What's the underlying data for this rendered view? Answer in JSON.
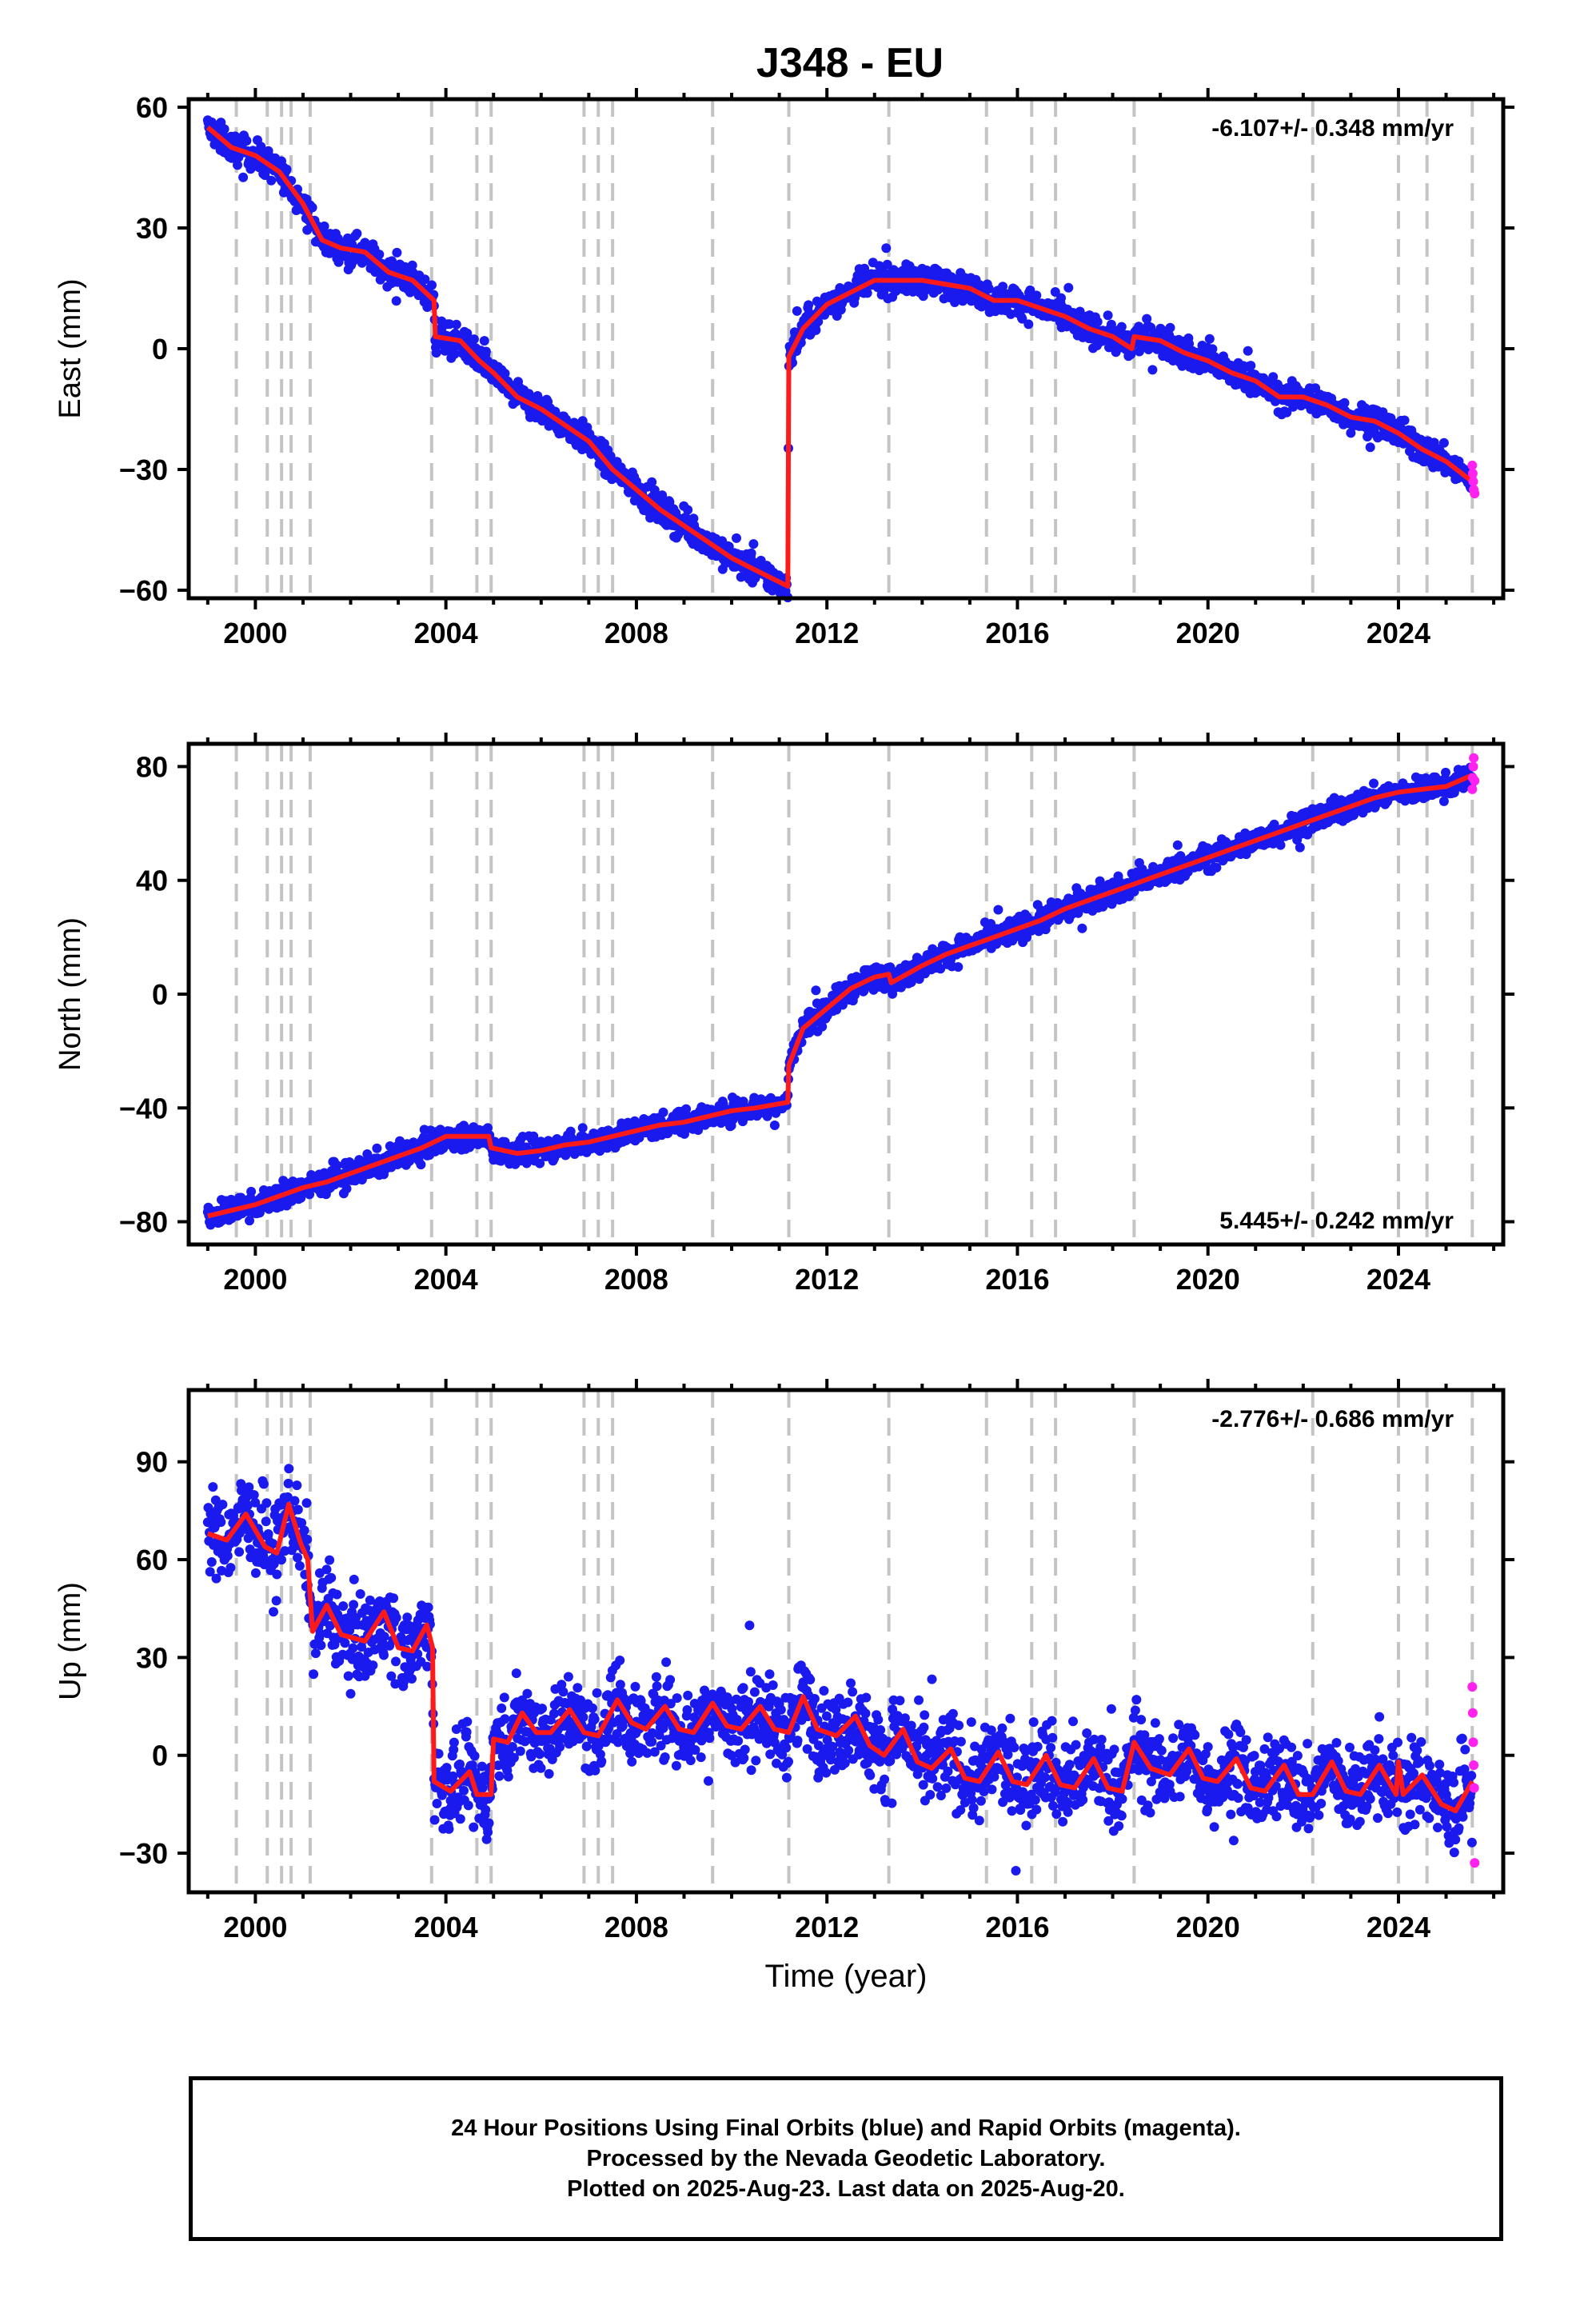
{
  "chart_data": {
    "type": "scatter",
    "title": "J348 - EU",
    "xlabel": "Time (year)",
    "xlim": [
      1998.6,
      2026.2
    ],
    "xticks": [
      2000,
      2004,
      2008,
      2012,
      2016,
      2020,
      2024
    ],
    "event_lines": [
      1999.6,
      2000.25,
      2000.55,
      2000.75,
      2001.15,
      2003.7,
      2004.65,
      2004.95,
      2006.9,
      2007.2,
      2007.5,
      2009.6,
      2011.2,
      2013.3,
      2015.35,
      2016.3,
      2016.8,
      2018.45,
      2022.2,
      2024.0,
      2024.6,
      2025.55
    ],
    "series_legend": {
      "final": "blue",
      "rapid": "magenta",
      "model": "red"
    },
    "panels": [
      {
        "id": "east",
        "ylabel": "East (mm)",
        "ylim": [
          -62,
          62
        ],
        "yticks": [
          -60,
          -30,
          0,
          30,
          60
        ],
        "rate_text": "-6.107+/- 0.348 mm/yr",
        "rate_position": "top-right",
        "model": [
          [
            1999.0,
            55
          ],
          [
            1999.5,
            50
          ],
          [
            2000.0,
            48
          ],
          [
            2000.5,
            44
          ],
          [
            2001.0,
            36
          ],
          [
            2001.4,
            27
          ],
          [
            2001.8,
            25
          ],
          [
            2002.3,
            24
          ],
          [
            2002.8,
            19
          ],
          [
            2003.3,
            17
          ],
          [
            2003.75,
            12
          ],
          [
            2003.78,
            3
          ],
          [
            2004.3,
            2
          ],
          [
            2004.7,
            -3
          ],
          [
            2005.0,
            -6
          ],
          [
            2005.5,
            -12
          ],
          [
            2006.0,
            -15
          ],
          [
            2006.5,
            -19
          ],
          [
            2007.0,
            -23
          ],
          [
            2007.5,
            -30
          ],
          [
            2008.0,
            -35
          ],
          [
            2008.5,
            -40
          ],
          [
            2009.0,
            -44
          ],
          [
            2009.5,
            -48
          ],
          [
            2010.0,
            -52
          ],
          [
            2010.5,
            -55
          ],
          [
            2011.18,
            -59
          ],
          [
            2011.2,
            -2
          ],
          [
            2011.5,
            5
          ],
          [
            2012.0,
            11
          ],
          [
            2012.5,
            14
          ],
          [
            2013.0,
            17
          ],
          [
            2013.5,
            17
          ],
          [
            2014.0,
            17
          ],
          [
            2014.5,
            16
          ],
          [
            2015.0,
            15
          ],
          [
            2015.5,
            12
          ],
          [
            2016.0,
            12
          ],
          [
            2016.5,
            10
          ],
          [
            2017.0,
            8
          ],
          [
            2017.5,
            5
          ],
          [
            2018.0,
            3
          ],
          [
            2018.4,
            0
          ],
          [
            2018.45,
            3
          ],
          [
            2019.0,
            2
          ],
          [
            2019.5,
            -1
          ],
          [
            2020.0,
            -3
          ],
          [
            2020.5,
            -6
          ],
          [
            2021.0,
            -8
          ],
          [
            2021.5,
            -12
          ],
          [
            2022.0,
            -12
          ],
          [
            2022.5,
            -14
          ],
          [
            2023.0,
            -17
          ],
          [
            2023.5,
            -18
          ],
          [
            2024.0,
            -21
          ],
          [
            2024.5,
            -25
          ],
          [
            2025.0,
            -28
          ],
          [
            2025.55,
            -33
          ]
        ],
        "scatter_spread": 2.5,
        "rapid": [
          [
            2025.55,
            -29
          ],
          [
            2025.56,
            -31
          ],
          [
            2025.57,
            -33
          ],
          [
            2025.58,
            -35
          ],
          [
            2025.6,
            -36
          ]
        ]
      },
      {
        "id": "north",
        "ylabel": "North (mm)",
        "ylim": [
          -88,
          88
        ],
        "yticks": [
          -80,
          -40,
          0,
          40,
          80
        ],
        "rate_text": "5.445+/- 0.242 mm/yr",
        "rate_position": "bottom-right",
        "model": [
          [
            1999.0,
            -78
          ],
          [
            1999.5,
            -76
          ],
          [
            2000.0,
            -74
          ],
          [
            2000.5,
            -71
          ],
          [
            2001.0,
            -68
          ],
          [
            2001.5,
            -66
          ],
          [
            2002.0,
            -63
          ],
          [
            2002.5,
            -60
          ],
          [
            2003.0,
            -57
          ],
          [
            2003.5,
            -54
          ],
          [
            2004.0,
            -50
          ],
          [
            2004.5,
            -50
          ],
          [
            2004.9,
            -50
          ],
          [
            2004.95,
            -54
          ],
          [
            2005.5,
            -56
          ],
          [
            2006.0,
            -55
          ],
          [
            2006.5,
            -53
          ],
          [
            2007.0,
            -52
          ],
          [
            2007.5,
            -50
          ],
          [
            2008.0,
            -48
          ],
          [
            2008.5,
            -46
          ],
          [
            2009.0,
            -45
          ],
          [
            2009.5,
            -43
          ],
          [
            2010.0,
            -41
          ],
          [
            2010.5,
            -40
          ],
          [
            2011.18,
            -38
          ],
          [
            2011.2,
            -25
          ],
          [
            2011.5,
            -12
          ],
          [
            2012.0,
            -5
          ],
          [
            2012.5,
            2
          ],
          [
            2013.0,
            6
          ],
          [
            2013.3,
            7
          ],
          [
            2013.35,
            4
          ],
          [
            2014.0,
            10
          ],
          [
            2014.5,
            14
          ],
          [
            2015.0,
            17
          ],
          [
            2015.5,
            20
          ],
          [
            2016.0,
            23
          ],
          [
            2016.5,
            26
          ],
          [
            2017.0,
            30
          ],
          [
            2017.5,
            33
          ],
          [
            2018.0,
            36
          ],
          [
            2018.5,
            39
          ],
          [
            2019.0,
            42
          ],
          [
            2019.5,
            45
          ],
          [
            2020.0,
            48
          ],
          [
            2020.5,
            51
          ],
          [
            2021.0,
            54
          ],
          [
            2021.5,
            57
          ],
          [
            2022.0,
            60
          ],
          [
            2022.5,
            63
          ],
          [
            2023.0,
            66
          ],
          [
            2023.5,
            69
          ],
          [
            2024.0,
            71
          ],
          [
            2024.5,
            72
          ],
          [
            2025.0,
            73
          ],
          [
            2025.55,
            77
          ]
        ],
        "scatter_spread": 3,
        "rapid": [
          [
            2025.55,
            72
          ],
          [
            2025.56,
            76
          ],
          [
            2025.57,
            80
          ],
          [
            2025.58,
            83
          ],
          [
            2025.6,
            75
          ]
        ]
      },
      {
        "id": "up",
        "ylabel": "Up (mm)",
        "ylim": [
          -42,
          112
        ],
        "yticks": [
          -30,
          0,
          30,
          60,
          90
        ],
        "rate_text": "-2.776+/- 0.686 mm/yr",
        "rate_position": "top-right",
        "model": [
          [
            1999.0,
            68
          ],
          [
            1999.4,
            66
          ],
          [
            1999.8,
            74
          ],
          [
            2000.2,
            64
          ],
          [
            2000.45,
            62
          ],
          [
            2000.7,
            77
          ],
          [
            2000.95,
            65
          ],
          [
            2001.1,
            60
          ],
          [
            2001.2,
            38
          ],
          [
            2001.5,
            46
          ],
          [
            2001.8,
            37
          ],
          [
            2002.3,
            35
          ],
          [
            2002.7,
            44
          ],
          [
            2003.0,
            33
          ],
          [
            2003.3,
            32
          ],
          [
            2003.6,
            40
          ],
          [
            2003.72,
            33
          ],
          [
            2003.75,
            -8
          ],
          [
            2004.1,
            -11
          ],
          [
            2004.5,
            -5
          ],
          [
            2004.65,
            -12
          ],
          [
            2004.95,
            -12
          ],
          [
            2005.0,
            5
          ],
          [
            2005.3,
            4
          ],
          [
            2005.6,
            13
          ],
          [
            2005.9,
            7
          ],
          [
            2006.2,
            7
          ],
          [
            2006.6,
            14
          ],
          [
            2006.9,
            7
          ],
          [
            2007.2,
            6
          ],
          [
            2007.6,
            17
          ],
          [
            2007.9,
            10
          ],
          [
            2008.2,
            8
          ],
          [
            2008.6,
            15
          ],
          [
            2008.9,
            8
          ],
          [
            2009.2,
            7
          ],
          [
            2009.6,
            16
          ],
          [
            2009.9,
            9
          ],
          [
            2010.2,
            8
          ],
          [
            2010.6,
            15
          ],
          [
            2010.9,
            8
          ],
          [
            2011.2,
            7
          ],
          [
            2011.5,
            18
          ],
          [
            2011.8,
            8
          ],
          [
            2012.2,
            6
          ],
          [
            2012.6,
            12
          ],
          [
            2012.9,
            3
          ],
          [
            2013.2,
            0
          ],
          [
            2013.6,
            8
          ],
          [
            2013.9,
            -2
          ],
          [
            2014.2,
            -4
          ],
          [
            2014.6,
            2
          ],
          [
            2014.9,
            -7
          ],
          [
            2015.2,
            -8
          ],
          [
            2015.6,
            1
          ],
          [
            2015.9,
            -8
          ],
          [
            2016.2,
            -9
          ],
          [
            2016.6,
            0
          ],
          [
            2016.9,
            -9
          ],
          [
            2017.2,
            -10
          ],
          [
            2017.6,
            -1
          ],
          [
            2017.9,
            -10
          ],
          [
            2018.2,
            -11
          ],
          [
            2018.45,
            4
          ],
          [
            2018.8,
            -4
          ],
          [
            2019.2,
            -6
          ],
          [
            2019.6,
            2
          ],
          [
            2019.9,
            -7
          ],
          [
            2020.2,
            -8
          ],
          [
            2020.6,
            -1
          ],
          [
            2020.9,
            -10
          ],
          [
            2021.2,
            -11
          ],
          [
            2021.6,
            -3
          ],
          [
            2021.9,
            -12
          ],
          [
            2022.2,
            -12
          ],
          [
            2022.6,
            -2
          ],
          [
            2022.9,
            -11
          ],
          [
            2023.2,
            -12
          ],
          [
            2023.6,
            -3
          ],
          [
            2023.95,
            -12
          ],
          [
            2024.0,
            -2
          ],
          [
            2024.1,
            -12
          ],
          [
            2024.5,
            -6
          ],
          [
            2024.9,
            -15
          ],
          [
            2025.2,
            -17
          ],
          [
            2025.55,
            -8
          ]
        ],
        "scatter_spread": 9,
        "rapid": [
          [
            2025.55,
            21
          ],
          [
            2025.56,
            13
          ],
          [
            2025.57,
            4
          ],
          [
            2025.58,
            -3
          ],
          [
            2025.59,
            -10
          ],
          [
            2025.6,
            -33
          ]
        ]
      }
    ]
  },
  "footer": {
    "line1": "24 Hour Positions Using Final Orbits (blue) and Rapid Orbits (magenta).",
    "line2": "Processed by the Nevada Geodetic Laboratory.",
    "line3": "Plotted on 2025-Aug-23. Last data on 2025-Aug-20."
  }
}
